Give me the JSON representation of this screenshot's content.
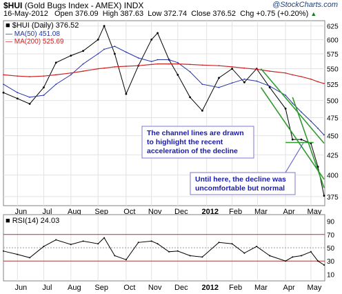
{
  "header": {
    "symbol": "$HUI",
    "name": "(Gold Bugs Index - AMEX)",
    "exchange": "INDX",
    "brand": "@StockCharts.com",
    "date": "16-May-2012",
    "open": "Open 376.09",
    "high": "High 387.63",
    "low": "Low 372.74",
    "close": "Close 376.52",
    "change": "Chg +0.75 (+0.20%)",
    "change_marker": "▲"
  },
  "colors": {
    "price": "#000000",
    "ma50": "#2233aa",
    "ma200": "#cc2222",
    "channel": "#2f9a2f",
    "annotation_text": "#1a1aaa",
    "rsi": "#000000",
    "rsi_levels": "#aa3333"
  },
  "chart_data": [
    {
      "type": "line",
      "title": "$HUI (Daily) 376.52",
      "x": [
        "2011-05-16",
        "2011-06-01",
        "2011-06-15",
        "2011-07-01",
        "2011-07-15",
        "2011-08-01",
        "2011-08-15",
        "2011-09-01",
        "2011-09-08",
        "2011-09-20",
        "2011-10-03",
        "2011-10-17",
        "2011-11-01",
        "2011-11-08",
        "2011-11-21",
        "2011-12-01",
        "2011-12-15",
        "2011-12-29",
        "2012-01-17",
        "2012-02-01",
        "2012-02-15",
        "2012-02-29",
        "2012-03-15",
        "2012-04-02",
        "2012-04-10",
        "2012-04-20",
        "2012-05-01",
        "2012-05-09",
        "2012-05-16"
      ],
      "x_ticks": [
        "Jun",
        "Jul",
        "Aug",
        "Sep",
        "Oct",
        "Nov",
        "Dec",
        "2012",
        "Feb",
        "Mar",
        "Apr",
        "May"
      ],
      "ylim": [
        365,
        635
      ],
      "y_ticks": [
        375,
        400,
        425,
        450,
        475,
        500,
        525,
        550,
        575,
        600,
        625
      ],
      "log_scale": true,
      "grid": true,
      "series": [
        {
          "name": "$HUI (Daily) 376.52",
          "values": [
            512,
            503,
            495,
            520,
            560,
            572,
            580,
            600,
            625,
            575,
            510,
            555,
            600,
            612,
            565,
            540,
            505,
            485,
            535,
            550,
            528,
            550,
            520,
            488,
            445,
            445,
            440,
            410,
            376
          ]
        },
        {
          "name": "MA(50) 451.08",
          "values": [
            525,
            512,
            505,
            508,
            525,
            540,
            558,
            575,
            583,
            588,
            578,
            568,
            562,
            565,
            565,
            560,
            545,
            525,
            520,
            527,
            533,
            530,
            522,
            508,
            496,
            483,
            470,
            460,
            451
          ]
        },
        {
          "name": "MA(200) 525.69",
          "values": [
            540,
            538,
            537,
            538,
            540,
            543,
            546,
            550,
            551,
            553,
            554,
            555,
            557,
            558,
            558,
            558,
            557,
            556,
            555,
            553,
            551,
            549,
            546,
            543,
            540,
            537,
            533,
            529,
            526
          ]
        }
      ],
      "channel_lines": [
        {
          "x": [
            "2012-03-05",
            "2012-05-16"
          ],
          "y": [
            550,
            440
          ]
        },
        {
          "x": [
            "2012-03-05",
            "2012-05-16"
          ],
          "y": [
            520,
            395
          ]
        },
        {
          "x": [
            "2012-04-10",
            "2012-05-16"
          ],
          "y": [
            505,
            385
          ]
        },
        {
          "x": [
            "2012-04-02",
            "2012-05-04"
          ],
          "y": [
            441,
            441
          ]
        }
      ],
      "annotations": [
        {
          "text": "The channel lines are drawn to highlight the recent acceleration of the decline",
          "lines": [
            "The channel lines are drawn",
            "to highlight  the recent",
            "acceleration of the decline"
          ]
        },
        {
          "text": "Until here, the decline was uncomfortable but normal",
          "lines": [
            "Until here, the decline was",
            "uncomfortable but normal"
          ]
        }
      ]
    },
    {
      "type": "line",
      "title": "RSI(14) 24.03",
      "x_ticks": [
        "Jun",
        "Jul",
        "Aug",
        "Sep",
        "Oct",
        "Nov",
        "Dec",
        "2012",
        "Feb",
        "Mar",
        "Apr",
        "May"
      ],
      "ylim": [
        0,
        100
      ],
      "y_ticks": [
        10,
        30,
        50,
        70,
        90
      ],
      "levels": [
        30,
        50,
        70
      ],
      "series": [
        {
          "name": "RSI(14) 24.03",
          "x": [
            "2011-05-16",
            "2011-06-01",
            "2011-06-15",
            "2011-07-01",
            "2011-07-15",
            "2011-08-01",
            "2011-08-15",
            "2011-09-01",
            "2011-09-08",
            "2011-09-20",
            "2011-10-03",
            "2011-10-17",
            "2011-11-01",
            "2011-11-08",
            "2011-11-21",
            "2011-12-01",
            "2011-12-15",
            "2011-12-29",
            "2012-01-17",
            "2012-02-01",
            "2012-02-15",
            "2012-02-29",
            "2012-03-15",
            "2012-04-02",
            "2012-04-10",
            "2012-04-20",
            "2012-05-01",
            "2012-05-09",
            "2012-05-16"
          ],
          "values": [
            45,
            40,
            35,
            52,
            62,
            55,
            60,
            56,
            65,
            38,
            32,
            58,
            60,
            56,
            44,
            45,
            38,
            36,
            58,
            56,
            42,
            52,
            38,
            30,
            36,
            38,
            44,
            30,
            24
          ]
        }
      ]
    }
  ]
}
